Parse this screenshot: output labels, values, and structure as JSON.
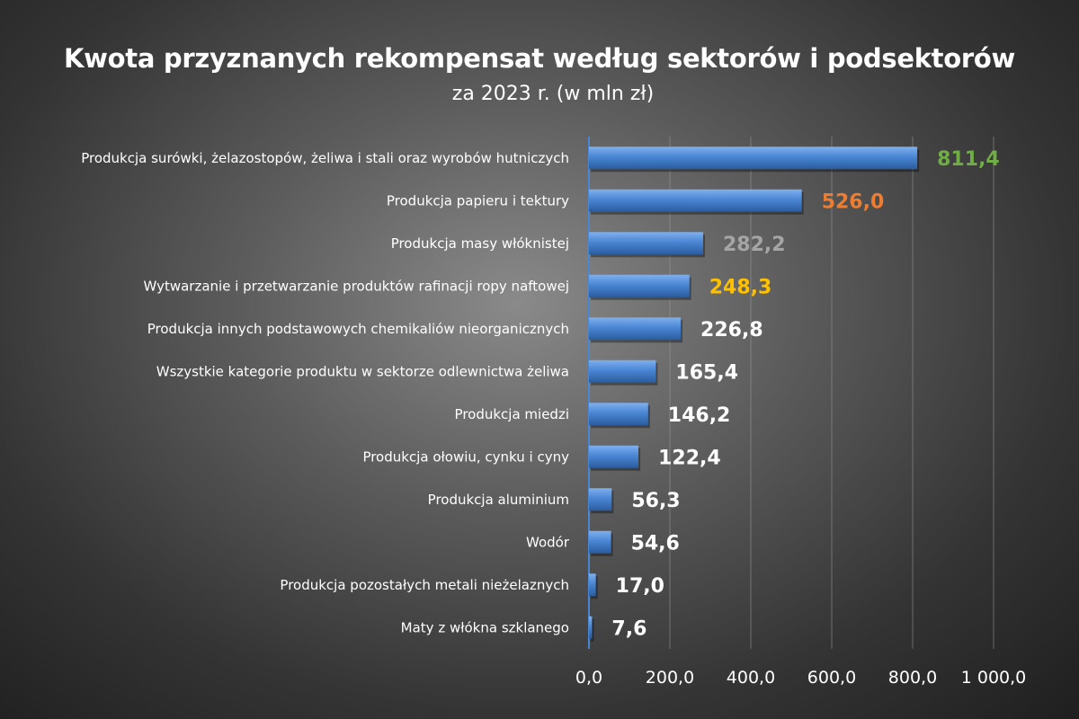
{
  "chart_data": {
    "type": "bar",
    "orientation": "horizontal",
    "title": "Kwota przyznanych rekompensat według sektorów i podsektorów",
    "subtitle": "za 2023 r. (w mln zł)",
    "xlabel": "",
    "ylabel": "",
    "xlim": [
      0,
      1000
    ],
    "ticks": [
      0,
      200,
      400,
      600,
      800,
      1000
    ],
    "tick_labels": [
      "0,0",
      "200,0",
      "400,0",
      "600,0",
      "800,0",
      "1 000,0"
    ],
    "grid": true,
    "legend": "none",
    "bar_color": "#4a86d4",
    "categories": [
      "Produkcja surówki, żelazostopów, żeliwa i stali oraz wyrobów hutniczych",
      "Produkcja papieru i tektury",
      "Produkcja masy włóknistej",
      "Wytwarzanie i przetwarzanie produktów rafinacji ropy naftowej",
      "Produkcja innych podstawowych chemikaliów nieorganicznych",
      "Wszystkie kategorie produktu w sektorze odlewnictwa żeliwa",
      "Produkcja miedzi",
      "Produkcja ołowiu, cynku i cyny",
      "Produkcja aluminium",
      "Wodór",
      "Produkcja pozostałych metali nieżelaznych",
      "Maty z włókna szklanego"
    ],
    "values": [
      811.4,
      526.0,
      282.2,
      248.3,
      226.8,
      165.4,
      146.2,
      122.4,
      56.3,
      54.6,
      17.0,
      7.6
    ],
    "value_labels": [
      "811,4",
      "526,0",
      "282,2",
      "248,3",
      "226,8",
      "165,4",
      "146,2",
      "122,4",
      "56,3",
      "54,6",
      "17,0",
      "7,6"
    ],
    "label_colors": [
      "#70ad47",
      "#ed7d31",
      "#a5a5a5",
      "#ffc000",
      "#ffffff",
      "#ffffff",
      "#ffffff",
      "#ffffff",
      "#ffffff",
      "#ffffff",
      "#ffffff",
      "#ffffff"
    ]
  }
}
